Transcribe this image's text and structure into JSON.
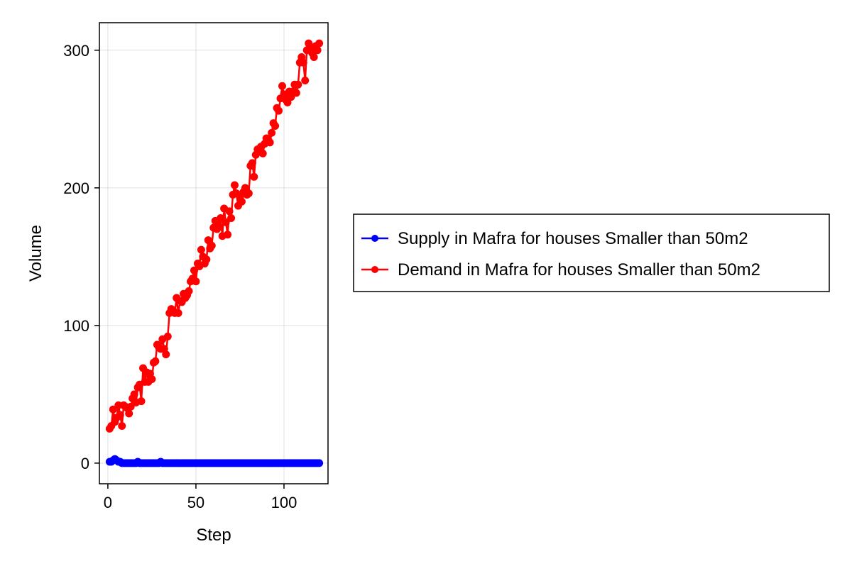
{
  "chart_data": {
    "type": "line",
    "title": "",
    "xlabel": "Step",
    "ylabel": "Volume",
    "xlim": [
      -4.8,
      125
    ],
    "ylim": [
      -15,
      320
    ],
    "xticks": [
      0,
      50,
      100
    ],
    "yticks": [
      0,
      100,
      200,
      300
    ],
    "xtick_labels": [
      "0",
      "50",
      "100"
    ],
    "ytick_labels": [
      "0",
      "100",
      "200",
      "300"
    ],
    "grid": true,
    "legend_position": "right",
    "x": [
      1,
      2,
      3,
      4,
      5,
      6,
      7,
      8,
      9,
      10,
      11,
      12,
      13,
      14,
      15,
      16,
      17,
      18,
      19,
      20,
      21,
      22,
      23,
      24,
      25,
      26,
      27,
      28,
      29,
      30,
      31,
      32,
      33,
      34,
      35,
      36,
      37,
      38,
      39,
      40,
      41,
      42,
      43,
      44,
      45,
      46,
      47,
      48,
      49,
      50,
      51,
      52,
      53,
      54,
      55,
      56,
      57,
      58,
      59,
      60,
      61,
      62,
      63,
      64,
      65,
      66,
      67,
      68,
      69,
      70,
      71,
      72,
      73,
      74,
      75,
      76,
      77,
      78,
      79,
      80,
      81,
      82,
      83,
      84,
      85,
      86,
      87,
      88,
      89,
      90,
      91,
      92,
      93,
      94,
      95,
      96,
      97,
      98,
      99,
      100,
      101,
      102,
      103,
      104,
      105,
      106,
      107,
      108,
      109,
      110,
      111,
      112,
      113,
      114,
      115,
      116,
      117,
      118,
      119,
      120
    ],
    "series": [
      {
        "name": "Supply in Mafra for houses Smaller than 50m2",
        "color": "#0000ff",
        "values": [
          1,
          1,
          2,
          3,
          2,
          1,
          1,
          0,
          0,
          0,
          0,
          0,
          0,
          0,
          0,
          0,
          1,
          0,
          0,
          0,
          0,
          0,
          0,
          0,
          0,
          0,
          0,
          0,
          0,
          1,
          0,
          0,
          0,
          0,
          0,
          0,
          0,
          0,
          0,
          0,
          0,
          0,
          0,
          0,
          0,
          0,
          0,
          0,
          0,
          0,
          0,
          0,
          0,
          0,
          0,
          0,
          0,
          0,
          0,
          0,
          0,
          0,
          0,
          0,
          0,
          0,
          0,
          0,
          0,
          0,
          0,
          0,
          0,
          0,
          0,
          0,
          0,
          0,
          0,
          0,
          0,
          0,
          0,
          0,
          0,
          0,
          0,
          0,
          0,
          0,
          0,
          0,
          0,
          0,
          0,
          0,
          0,
          0,
          0,
          0,
          0,
          0,
          0,
          0,
          0,
          0,
          0,
          0,
          0,
          0,
          0,
          0,
          0,
          0,
          0,
          0,
          0,
          0,
          0,
          0
        ]
      },
      {
        "name": "Demand in Mafra for houses Smaller than 50m2",
        "color": "#ff0000",
        "values": [
          25,
          27,
          39,
          30,
          33,
          42,
          35,
          27,
          42,
          41,
          40,
          36,
          41,
          47,
          50,
          44,
          55,
          57,
          45,
          69,
          59,
          66,
          59,
          65,
          61,
          73,
          74,
          86,
          84,
          83,
          90,
          83,
          79,
          92,
          109,
          112,
          111,
          109,
          120,
          109,
          118,
          117,
          123,
          120,
          122,
          125,
          132,
          134,
          140,
          132,
          145,
          143,
          155,
          150,
          145,
          148,
          162,
          156,
          158,
          171,
          176,
          170,
          172,
          178,
          165,
          185,
          175,
          166,
          183,
          178,
          195,
          202,
          196,
          187,
          193,
          190,
          197,
          200,
          195,
          196,
          216,
          218,
          208,
          224,
          228,
          227,
          230,
          225,
          232,
          236,
          235,
          233,
          240,
          247,
          245,
          258,
          256,
          265,
          274,
          268,
          264,
          262,
          270,
          266,
          270,
          275,
          269,
          275,
          291,
          295,
          291,
          278,
          300,
          305,
          302,
          298,
          295,
          303,
          300,
          305
        ]
      }
    ]
  }
}
